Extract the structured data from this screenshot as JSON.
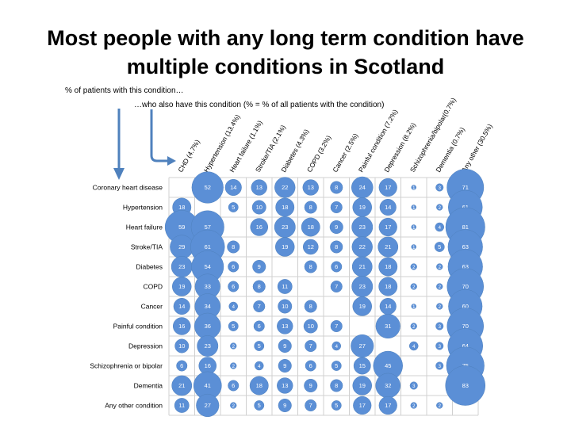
{
  "title": {
    "line1": "Most people with any long term condition have",
    "line2": "multiple conditions in Scotland"
  },
  "annotations": {
    "rows_note": "% of patients with this condition…",
    "cols_note": "…who also have this condition (% = % of all patients with the condition)"
  },
  "colors": {
    "bubble": "#5b8fd6",
    "bubble_stroke": "#4f81bd",
    "grid": "#d0d0d0",
    "arrow": "#4f81bd"
  },
  "chart_data": {
    "type": "table",
    "subtype": "bubble matrix",
    "columns": [
      "CHD (4.7%)",
      "Hypertension (13.4%)",
      "Heart failure (1.1%)",
      "Stroke/TIA (2.1%)",
      "Diabetes (4.3%)",
      "COPD (3.2%)",
      "Cancer (2.5%)",
      "Painful condition (7.2%)",
      "Depression (8.2%)",
      "Schizophrenia/bipolar(0.7%)",
      "Dementia (0.7%)",
      "Any other (30.5%)"
    ],
    "rows": [
      "Coronary heart disease",
      "Hypertension",
      "Heart failure",
      "Stroke/TIA",
      "Diabetes",
      "COPD",
      "Cancer",
      "Painful condition",
      "Depression",
      "Schizophrenia or bipolar",
      "Dementia",
      "Any other condition"
    ],
    "values": [
      [
        null,
        52,
        14,
        13,
        22,
        13,
        8,
        24,
        17,
        1,
        3,
        71
      ],
      [
        18,
        null,
        5,
        10,
        18,
        8,
        7,
        19,
        14,
        1,
        2,
        61
      ],
      [
        59,
        57,
        null,
        16,
        23,
        18,
        9,
        23,
        17,
        1,
        4,
        81
      ],
      [
        29,
        61,
        8,
        null,
        19,
        12,
        8,
        22,
        21,
        1,
        5,
        63
      ],
      [
        23,
        54,
        6,
        9,
        null,
        8,
        6,
        21,
        18,
        2,
        2,
        63
      ],
      [
        19,
        33,
        6,
        8,
        11,
        null,
        7,
        23,
        18,
        2,
        2,
        70
      ],
      [
        14,
        34,
        4,
        7,
        10,
        8,
        null,
        19,
        14,
        1,
        2,
        60
      ],
      [
        16,
        36,
        5,
        6,
        13,
        10,
        7,
        null,
        31,
        2,
        3,
        70
      ],
      [
        10,
        23,
        2,
        5,
        9,
        7,
        4,
        27,
        null,
        4,
        3,
        64
      ],
      [
        6,
        16,
        2,
        4,
        9,
        6,
        5,
        15,
        45,
        null,
        3,
        75
      ],
      [
        21,
        41,
        6,
        18,
        13,
        9,
        8,
        19,
        32,
        3,
        null,
        83
      ],
      [
        11,
        27,
        2,
        5,
        9,
        7,
        5,
        17,
        17,
        2,
        2,
        null
      ]
    ]
  }
}
